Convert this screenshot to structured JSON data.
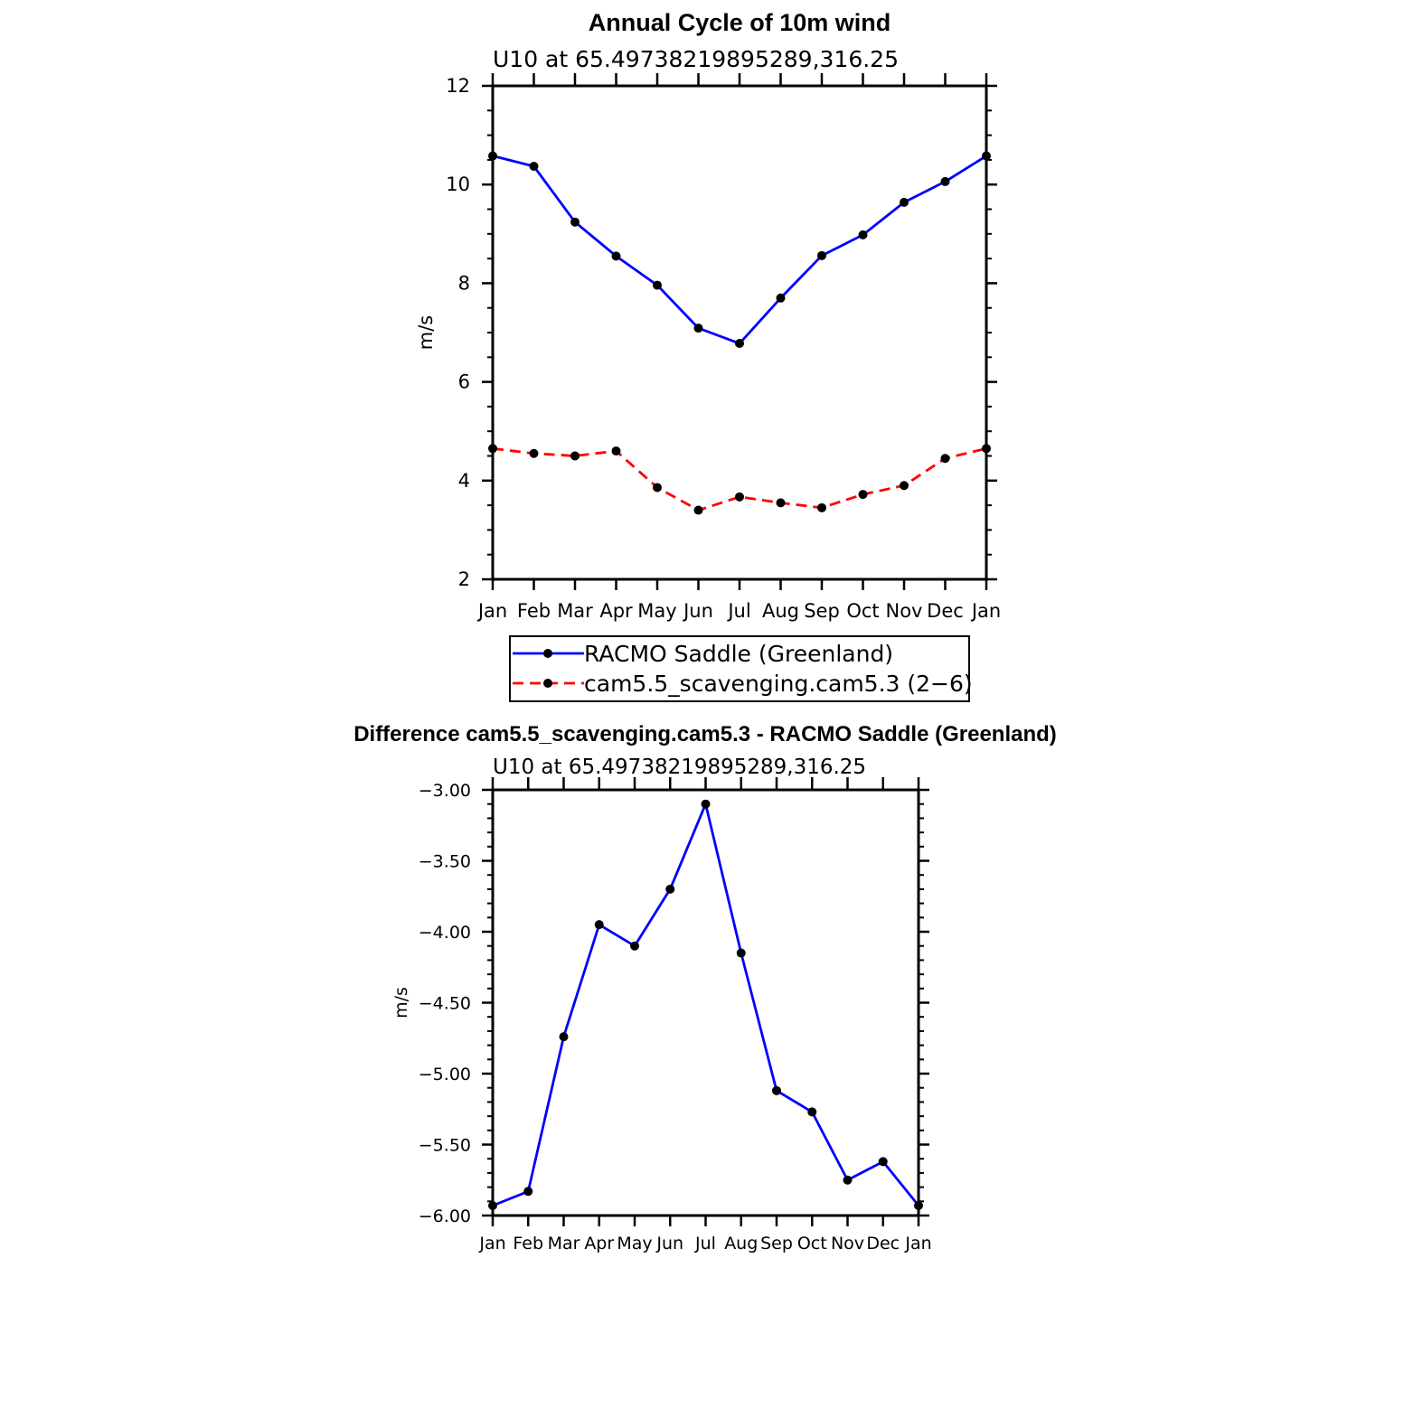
{
  "chart_data": [
    {
      "type": "line",
      "title": "Annual Cycle of 10m wind",
      "subtitle": "U10 at 65.49738219895289,316.25",
      "xlabel": "",
      "ylabel": "m/s",
      "categories": [
        "Jan",
        "Feb",
        "Mar",
        "Apr",
        "May",
        "Jun",
        "Jul",
        "Aug",
        "Sep",
        "Oct",
        "Nov",
        "Dec",
        "Jan"
      ],
      "ylim": [
        2,
        12
      ],
      "yticks": [
        "2",
        "4",
        "6",
        "8",
        "10",
        "12"
      ],
      "grid": false,
      "legend_placement": "below",
      "series": [
        {
          "name": "RACMO Saddle (Greenland)",
          "color": "#0000ff",
          "dash": "solid",
          "values": [
            10.58,
            10.37,
            9.24,
            8.55,
            7.96,
            7.09,
            6.78,
            7.7,
            8.56,
            8.98,
            9.64,
            10.06,
            10.58
          ]
        },
        {
          "name": "cam5.5_scavenging.cam5.3 (2−6)",
          "color": "#ff0000",
          "dash": "dashed",
          "values": [
            4.65,
            4.55,
            4.5,
            4.6,
            3.86,
            3.4,
            3.67,
            3.55,
            3.45,
            3.72,
            3.9,
            4.45,
            4.65
          ]
        }
      ]
    },
    {
      "type": "line",
      "title": "Difference cam5.5_scavenging.cam5.3 - RACMO Saddle (Greenland)",
      "subtitle": "U10 at 65.49738219895289,316.25",
      "xlabel": "",
      "ylabel": "m/s",
      "categories": [
        "Jan",
        "Feb",
        "Mar",
        "Apr",
        "May",
        "Jun",
        "Jul",
        "Aug",
        "Sep",
        "Oct",
        "Nov",
        "Dec",
        "Jan"
      ],
      "ylim": [
        -6.0,
        -3.0
      ],
      "yticks": [
        "−6.00",
        "−5.50",
        "−5.00",
        "−4.50",
        "−4.00",
        "−3.50",
        "−3.00"
      ],
      "grid": false,
      "series": [
        {
          "color": "#0000ff",
          "dash": "solid",
          "values": [
            -5.93,
            -5.83,
            -4.74,
            -3.95,
            -4.1,
            -3.7,
            -3.1,
            -4.15,
            -5.12,
            -5.27,
            -5.75,
            -5.62,
            -5.93
          ]
        }
      ]
    }
  ]
}
